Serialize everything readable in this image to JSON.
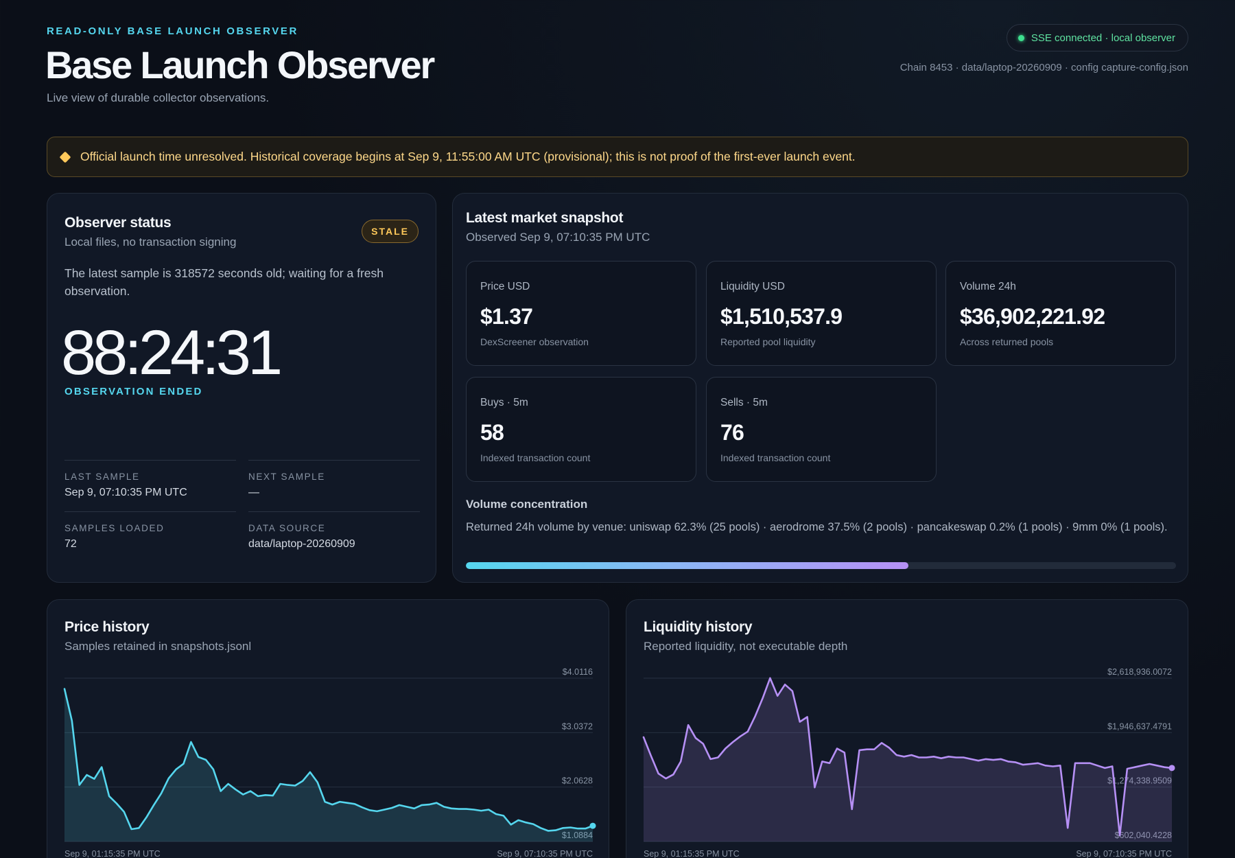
{
  "header": {
    "eyebrow": "READ-ONLY BASE LAUNCH OBSERVER",
    "title": "Base Launch Observer",
    "subtitle": "Live view of durable collector observations.",
    "connection": "SSE connected · local observer",
    "meta": "Chain 8453 · data/laptop-20260909 · config capture-config.json"
  },
  "warning": {
    "text": "Official launch time unresolved. Historical coverage begins at Sep 9, 11:55:00 AM UTC (provisional); this is not proof of the first-ever launch event."
  },
  "status": {
    "title": "Observer status",
    "subtitle": "Local files, no transaction signing",
    "badge": "STALE",
    "message": "The latest sample is 318572 seconds old; waiting for a fresh observation.",
    "countdown": "88:24:31",
    "countdown_label": "OBSERVATION ENDED",
    "meta": [
      {
        "key": "LAST SAMPLE",
        "value": "Sep 9, 07:10:35 PM UTC"
      },
      {
        "key": "NEXT SAMPLE",
        "value": "—"
      },
      {
        "key": "SAMPLES LOADED",
        "value": "72"
      },
      {
        "key": "DATA SOURCE",
        "value": "data/laptop-20260909"
      }
    ]
  },
  "market": {
    "title": "Latest market snapshot",
    "subtitle": "Observed Sep 9, 07:10:35 PM UTC",
    "tiles": [
      {
        "label": "Price USD",
        "value": "$1.37",
        "note": "DexScreener observation"
      },
      {
        "label": "Liquidity USD",
        "value": "$1,510,537.9",
        "note": "Reported pool liquidity"
      },
      {
        "label": "Volume 24h",
        "value": "$36,902,221.92",
        "note": "Across returned pools"
      },
      {
        "label": "Buys · 5m",
        "value": "58",
        "note": "Indexed transaction count"
      },
      {
        "label": "Sells · 5m",
        "value": "76",
        "note": "Indexed transaction count"
      }
    ],
    "volume_concentration": {
      "title": "Volume concentration",
      "text": "Returned 24h volume by venue: uniswap 62.3% (25 pools) · aerodrome 37.5% (2 pools) · pancakeswap 0.2% (1 pools) · 9mm 0% (1 pools).",
      "fill_fraction": 0.623
    }
  },
  "colors": {
    "accent_cyan": "#55d6ee",
    "accent_purple": "#b690f5",
    "warning": "#ffc95a",
    "connected": "#3ee08f"
  },
  "price_history": {
    "title": "Price history",
    "subtitle": "Samples retained in snapshots.jsonl",
    "ticks": [
      "$4.0116",
      "$3.0372",
      "$2.0628",
      "$1.0884"
    ],
    "x_start": "Sep 9, 01:15:35 PM UTC",
    "x_end": "Sep 9, 07:10:35 PM UTC",
    "chart_data": {
      "type": "area",
      "ylim": [
        1.0884,
        4.0116
      ],
      "values": [
        3.82,
        3.25,
        2.1,
        2.28,
        2.21,
        2.42,
        1.9,
        1.77,
        1.62,
        1.31,
        1.33,
        1.52,
        1.74,
        1.95,
        2.22,
        2.38,
        2.48,
        2.87,
        2.6,
        2.55,
        2.38,
        1.99,
        2.12,
        2.02,
        1.93,
        1.99,
        1.9,
        1.92,
        1.91,
        2.12,
        2.1,
        2.09,
        2.17,
        2.33,
        2.15,
        1.8,
        1.75,
        1.8,
        1.78,
        1.76,
        1.7,
        1.65,
        1.63,
        1.66,
        1.69,
        1.74,
        1.71,
        1.68,
        1.74,
        1.75,
        1.78,
        1.71,
        1.68,
        1.67,
        1.67,
        1.66,
        1.64,
        1.66,
        1.58,
        1.55,
        1.39,
        1.47,
        1.43,
        1.4,
        1.33,
        1.28,
        1.29,
        1.33,
        1.34,
        1.32,
        1.32,
        1.37
      ]
    }
  },
  "liquidity_history": {
    "title": "Liquidity history",
    "subtitle": "Reported liquidity, not executable depth",
    "ticks": [
      "$2,618,936.0072",
      "$1,946,637.4791",
      "$1,274,338.9509",
      "$602,040.4228"
    ],
    "x_start": "Sep 9, 01:15:35 PM UTC",
    "x_end": "Sep 9, 07:10:35 PM UTC",
    "chart_data": {
      "type": "area",
      "ylim": [
        602040.4228,
        2618936.0072
      ],
      "values": [
        1890000,
        1660000,
        1440000,
        1380000,
        1430000,
        1590000,
        2040000,
        1880000,
        1810000,
        1620000,
        1640000,
        1750000,
        1830000,
        1900000,
        1960000,
        2150000,
        2370000,
        2620000,
        2400000,
        2540000,
        2460000,
        2080000,
        2140000,
        1270000,
        1590000,
        1570000,
        1750000,
        1700000,
        1000000,
        1730000,
        1740000,
        1740000,
        1820000,
        1760000,
        1670000,
        1650000,
        1670000,
        1640000,
        1640000,
        1650000,
        1630000,
        1650000,
        1640000,
        1640000,
        1620000,
        1600000,
        1620000,
        1610000,
        1620000,
        1590000,
        1580000,
        1550000,
        1560000,
        1570000,
        1540000,
        1530000,
        1540000,
        770000,
        1570000,
        1570000,
        1570000,
        1540000,
        1510000,
        1530000,
        680000,
        1500000,
        1520000,
        1540000,
        1560000,
        1540000,
        1520000,
        1510000
      ]
    }
  }
}
